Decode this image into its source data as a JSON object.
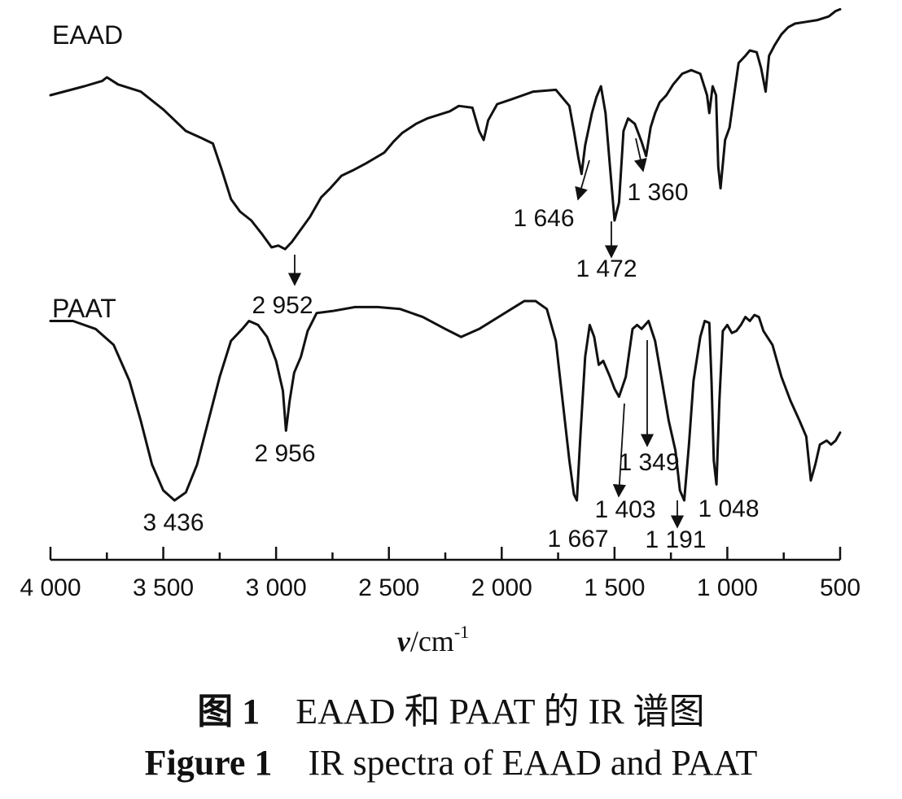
{
  "chart_data": {
    "type": "line",
    "xlabel_symbol": "ν",
    "xlabel_unit": "/cm",
    "xlabel_exp": "-1",
    "xlim": [
      4000,
      500
    ],
    "x_ticks": [
      {
        "value": 4000,
        "label": "4 000"
      },
      {
        "value": 3500,
        "label": "3 500"
      },
      {
        "value": 3000,
        "label": "3 000"
      },
      {
        "value": 2500,
        "label": "2 500"
      },
      {
        "value": 2000,
        "label": "2 000"
      },
      {
        "value": 1500,
        "label": "1 500"
      },
      {
        "value": 1000,
        "label": "1 000"
      },
      {
        "value": 500,
        "label": "500"
      }
    ],
    "series": [
      {
        "name": "EAAD",
        "points": [
          [
            4000,
            0.9
          ],
          [
            3850,
            0.95
          ],
          [
            3770,
            0.98
          ],
          [
            3750,
            1.0
          ],
          [
            3700,
            0.96
          ],
          [
            3600,
            0.92
          ],
          [
            3500,
            0.82
          ],
          [
            3400,
            0.7
          ],
          [
            3330,
            0.66
          ],
          [
            3280,
            0.63
          ],
          [
            3240,
            0.48
          ],
          [
            3200,
            0.32
          ],
          [
            3160,
            0.25
          ],
          [
            3110,
            0.2
          ],
          [
            3060,
            0.12
          ],
          [
            3020,
            0.05
          ],
          [
            2990,
            0.06
          ],
          [
            2960,
            0.04
          ],
          [
            2930,
            0.08
          ],
          [
            2890,
            0.15
          ],
          [
            2850,
            0.22
          ],
          [
            2800,
            0.33
          ],
          [
            2760,
            0.38
          ],
          [
            2710,
            0.45
          ],
          [
            2660,
            0.48
          ],
          [
            2600,
            0.52
          ],
          [
            2560,
            0.55
          ],
          [
            2520,
            0.58
          ],
          [
            2480,
            0.64
          ],
          [
            2440,
            0.69
          ],
          [
            2380,
            0.74
          ],
          [
            2330,
            0.77
          ],
          [
            2280,
            0.79
          ],
          [
            2230,
            0.81
          ],
          [
            2190,
            0.84
          ],
          [
            2130,
            0.83
          ],
          [
            2100,
            0.7
          ],
          [
            2080,
            0.65
          ],
          [
            2060,
            0.76
          ],
          [
            2020,
            0.85
          ],
          [
            1950,
            0.88
          ],
          [
            1860,
            0.92
          ],
          [
            1760,
            0.93
          ],
          [
            1700,
            0.84
          ],
          [
            1680,
            0.7
          ],
          [
            1660,
            0.55
          ],
          [
            1646,
            0.46
          ],
          [
            1630,
            0.62
          ],
          [
            1600,
            0.8
          ],
          [
            1580,
            0.89
          ],
          [
            1560,
            0.95
          ],
          [
            1540,
            0.8
          ],
          [
            1520,
            0.5
          ],
          [
            1500,
            0.2
          ],
          [
            1480,
            0.3
          ],
          [
            1460,
            0.7
          ],
          [
            1440,
            0.77
          ],
          [
            1410,
            0.74
          ],
          [
            1380,
            0.64
          ],
          [
            1360,
            0.56
          ],
          [
            1340,
            0.72
          ],
          [
            1320,
            0.8
          ],
          [
            1300,
            0.86
          ],
          [
            1270,
            0.9
          ],
          [
            1240,
            0.96
          ],
          [
            1200,
            1.02
          ],
          [
            1160,
            1.04
          ],
          [
            1140,
            1.03
          ],
          [
            1120,
            1.02
          ],
          [
            1090,
            0.9
          ],
          [
            1080,
            0.8
          ],
          [
            1065,
            0.95
          ],
          [
            1050,
            0.9
          ],
          [
            1040,
            0.5
          ],
          [
            1030,
            0.38
          ],
          [
            1010,
            0.65
          ],
          [
            990,
            0.72
          ],
          [
            970,
            0.9
          ],
          [
            950,
            1.08
          ],
          [
            920,
            1.12
          ],
          [
            900,
            1.15
          ],
          [
            870,
            1.14
          ],
          [
            850,
            1.05
          ],
          [
            830,
            0.92
          ],
          [
            815,
            1.12
          ],
          [
            790,
            1.18
          ],
          [
            760,
            1.24
          ],
          [
            730,
            1.28
          ],
          [
            700,
            1.3
          ],
          [
            650,
            1.31
          ],
          [
            600,
            1.32
          ],
          [
            550,
            1.34
          ],
          [
            520,
            1.37
          ],
          [
            500,
            1.38
          ]
        ]
      },
      {
        "name": "PAAT",
        "points": [
          [
            4000,
            0.9
          ],
          [
            3900,
            0.9
          ],
          [
            3800,
            0.86
          ],
          [
            3720,
            0.78
          ],
          [
            3650,
            0.6
          ],
          [
            3600,
            0.4
          ],
          [
            3550,
            0.18
          ],
          [
            3500,
            0.05
          ],
          [
            3450,
            0.0
          ],
          [
            3400,
            0.04
          ],
          [
            3350,
            0.18
          ],
          [
            3300,
            0.4
          ],
          [
            3250,
            0.62
          ],
          [
            3200,
            0.8
          ],
          [
            3150,
            0.86
          ],
          [
            3120,
            0.9
          ],
          [
            3080,
            0.88
          ],
          [
            3040,
            0.82
          ],
          [
            3000,
            0.7
          ],
          [
            2970,
            0.55
          ],
          [
            2956,
            0.35
          ],
          [
            2940,
            0.5
          ],
          [
            2920,
            0.64
          ],
          [
            2890,
            0.72
          ],
          [
            2860,
            0.85
          ],
          [
            2820,
            0.94
          ],
          [
            2750,
            0.95
          ],
          [
            2650,
            0.97
          ],
          [
            2550,
            0.97
          ],
          [
            2450,
            0.96
          ],
          [
            2350,
            0.92
          ],
          [
            2250,
            0.86
          ],
          [
            2180,
            0.82
          ],
          [
            2100,
            0.86
          ],
          [
            2000,
            0.93
          ],
          [
            1900,
            1.0
          ],
          [
            1850,
            1.0
          ],
          [
            1800,
            0.96
          ],
          [
            1760,
            0.8
          ],
          [
            1730,
            0.5
          ],
          [
            1700,
            0.2
          ],
          [
            1680,
            0.03
          ],
          [
            1667,
            0.0
          ],
          [
            1650,
            0.35
          ],
          [
            1630,
            0.72
          ],
          [
            1610,
            0.88
          ],
          [
            1590,
            0.82
          ],
          [
            1570,
            0.68
          ],
          [
            1550,
            0.7
          ],
          [
            1520,
            0.62
          ],
          [
            1500,
            0.56
          ],
          [
            1480,
            0.52
          ],
          [
            1450,
            0.62
          ],
          [
            1420,
            0.86
          ],
          [
            1400,
            0.88
          ],
          [
            1380,
            0.86
          ],
          [
            1349,
            0.9
          ],
          [
            1320,
            0.8
          ],
          [
            1290,
            0.6
          ],
          [
            1260,
            0.4
          ],
          [
            1230,
            0.25
          ],
          [
            1210,
            0.05
          ],
          [
            1191,
            0.0
          ],
          [
            1170,
            0.28
          ],
          [
            1150,
            0.6
          ],
          [
            1120,
            0.82
          ],
          [
            1100,
            0.9
          ],
          [
            1080,
            0.89
          ],
          [
            1070,
            0.6
          ],
          [
            1060,
            0.2
          ],
          [
            1048,
            0.08
          ],
          [
            1035,
            0.5
          ],
          [
            1020,
            0.85
          ],
          [
            1000,
            0.88
          ],
          [
            980,
            0.84
          ],
          [
            960,
            0.85
          ],
          [
            940,
            0.88
          ],
          [
            920,
            0.92
          ],
          [
            900,
            0.9
          ],
          [
            880,
            0.93
          ],
          [
            860,
            0.92
          ],
          [
            840,
            0.85
          ],
          [
            800,
            0.78
          ],
          [
            760,
            0.62
          ],
          [
            720,
            0.5
          ],
          [
            680,
            0.4
          ],
          [
            650,
            0.32
          ],
          [
            630,
            0.1
          ],
          [
            610,
            0.18
          ],
          [
            590,
            0.28
          ],
          [
            560,
            0.3
          ],
          [
            540,
            0.28
          ],
          [
            520,
            0.3
          ],
          [
            500,
            0.34
          ]
        ]
      }
    ],
    "annotations": [
      {
        "series": "EAAD",
        "label": "2 952",
        "x": 2952
      },
      {
        "series": "EAAD",
        "label": "1 646",
        "x": 1646
      },
      {
        "series": "EAAD",
        "label": "1 472",
        "x": 1472
      },
      {
        "series": "EAAD",
        "label": "1 360",
        "x": 1360
      },
      {
        "series": "PAAT",
        "label": "3 436",
        "x": 3436
      },
      {
        "series": "PAAT",
        "label": "2 956",
        "x": 2956
      },
      {
        "series": "PAAT",
        "label": "1 667",
        "x": 1667
      },
      {
        "series": "PAAT",
        "label": "1 403",
        "x": 1403
      },
      {
        "series": "PAAT",
        "label": "1 349",
        "x": 1349
      },
      {
        "series": "PAAT",
        "label": "1 191",
        "x": 1191
      },
      {
        "series": "PAAT",
        "label": "1 048",
        "x": 1048
      }
    ],
    "grid": false
  },
  "caption": {
    "cn_label": "图 1",
    "cn_text": "EAAD 和 PAAT 的 IR 谱图",
    "en_label": "Figure 1",
    "en_text": "IR spectra of EAAD and PAAT"
  }
}
